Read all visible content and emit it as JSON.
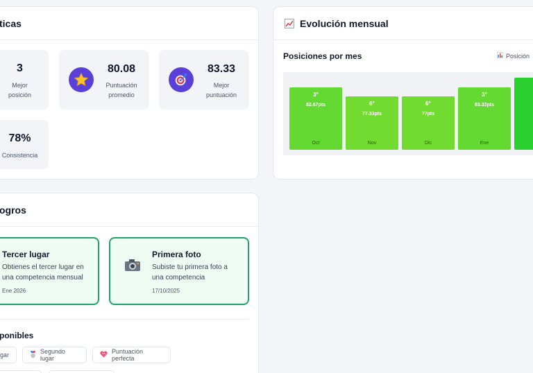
{
  "stats": {
    "title": "ticas",
    "items": [
      {
        "value": "3",
        "label_lines": [
          "Mejor",
          "posición"
        ]
      },
      {
        "value": "80.08",
        "label_lines": [
          "Puntuación",
          "promedio"
        ],
        "icon": "star-icon"
      },
      {
        "value": "83.33",
        "label_lines": [
          "Mejor",
          "puntuación"
        ],
        "icon": "target-icon"
      },
      {
        "value": "78%",
        "label_lines": [
          "Consistencia"
        ]
      }
    ]
  },
  "evolution": {
    "title": "Evolución mensual",
    "icon": "chart-line-icon",
    "subtitle": "Posiciones por mes",
    "legend": "Posición",
    "legend_icon": "bar-chart-icon"
  },
  "chart_data": {
    "type": "bar",
    "title": "Posiciones por mes",
    "categories": [
      "Oct",
      "Nov",
      "Dic",
      "Ene",
      ""
    ],
    "series": [
      {
        "name": "Posición",
        "values": [
          3,
          6,
          6,
          3,
          null
        ]
      }
    ],
    "position_labels": [
      "3°",
      "6°",
      "6°",
      "3°",
      ""
    ],
    "points_labels": [
      "82.67pts",
      "77.33pts",
      "77pts",
      "83.33pts",
      ""
    ],
    "bar_colors": [
      "#63d932",
      "#71db2f",
      "#71db2f",
      "#63d932",
      "#2ad12e"
    ],
    "legend": "top-right"
  },
  "achievements": {
    "title": "ogros",
    "earned": [
      {
        "title": "Tercer lugar",
        "desc_lines": [
          "Obtienes el tercer lugar en",
          "una competencia mensual"
        ],
        "date": "Ene 2026",
        "icon": "medal-icon"
      },
      {
        "title": "Primera foto",
        "desc_lines": [
          "Subiste tu primera foto a",
          "una competencia"
        ],
        "date": "17/10/2025",
        "icon": "camera-icon"
      }
    ],
    "available_title": "ponibles",
    "available": [
      {
        "label": "gar",
        "icon": "medal-icon"
      },
      {
        "label": "Segundo lugar",
        "icon": "medal-icon"
      },
      {
        "label": "Puntuación perfecta",
        "icon": "heart-icon"
      }
    ]
  }
}
